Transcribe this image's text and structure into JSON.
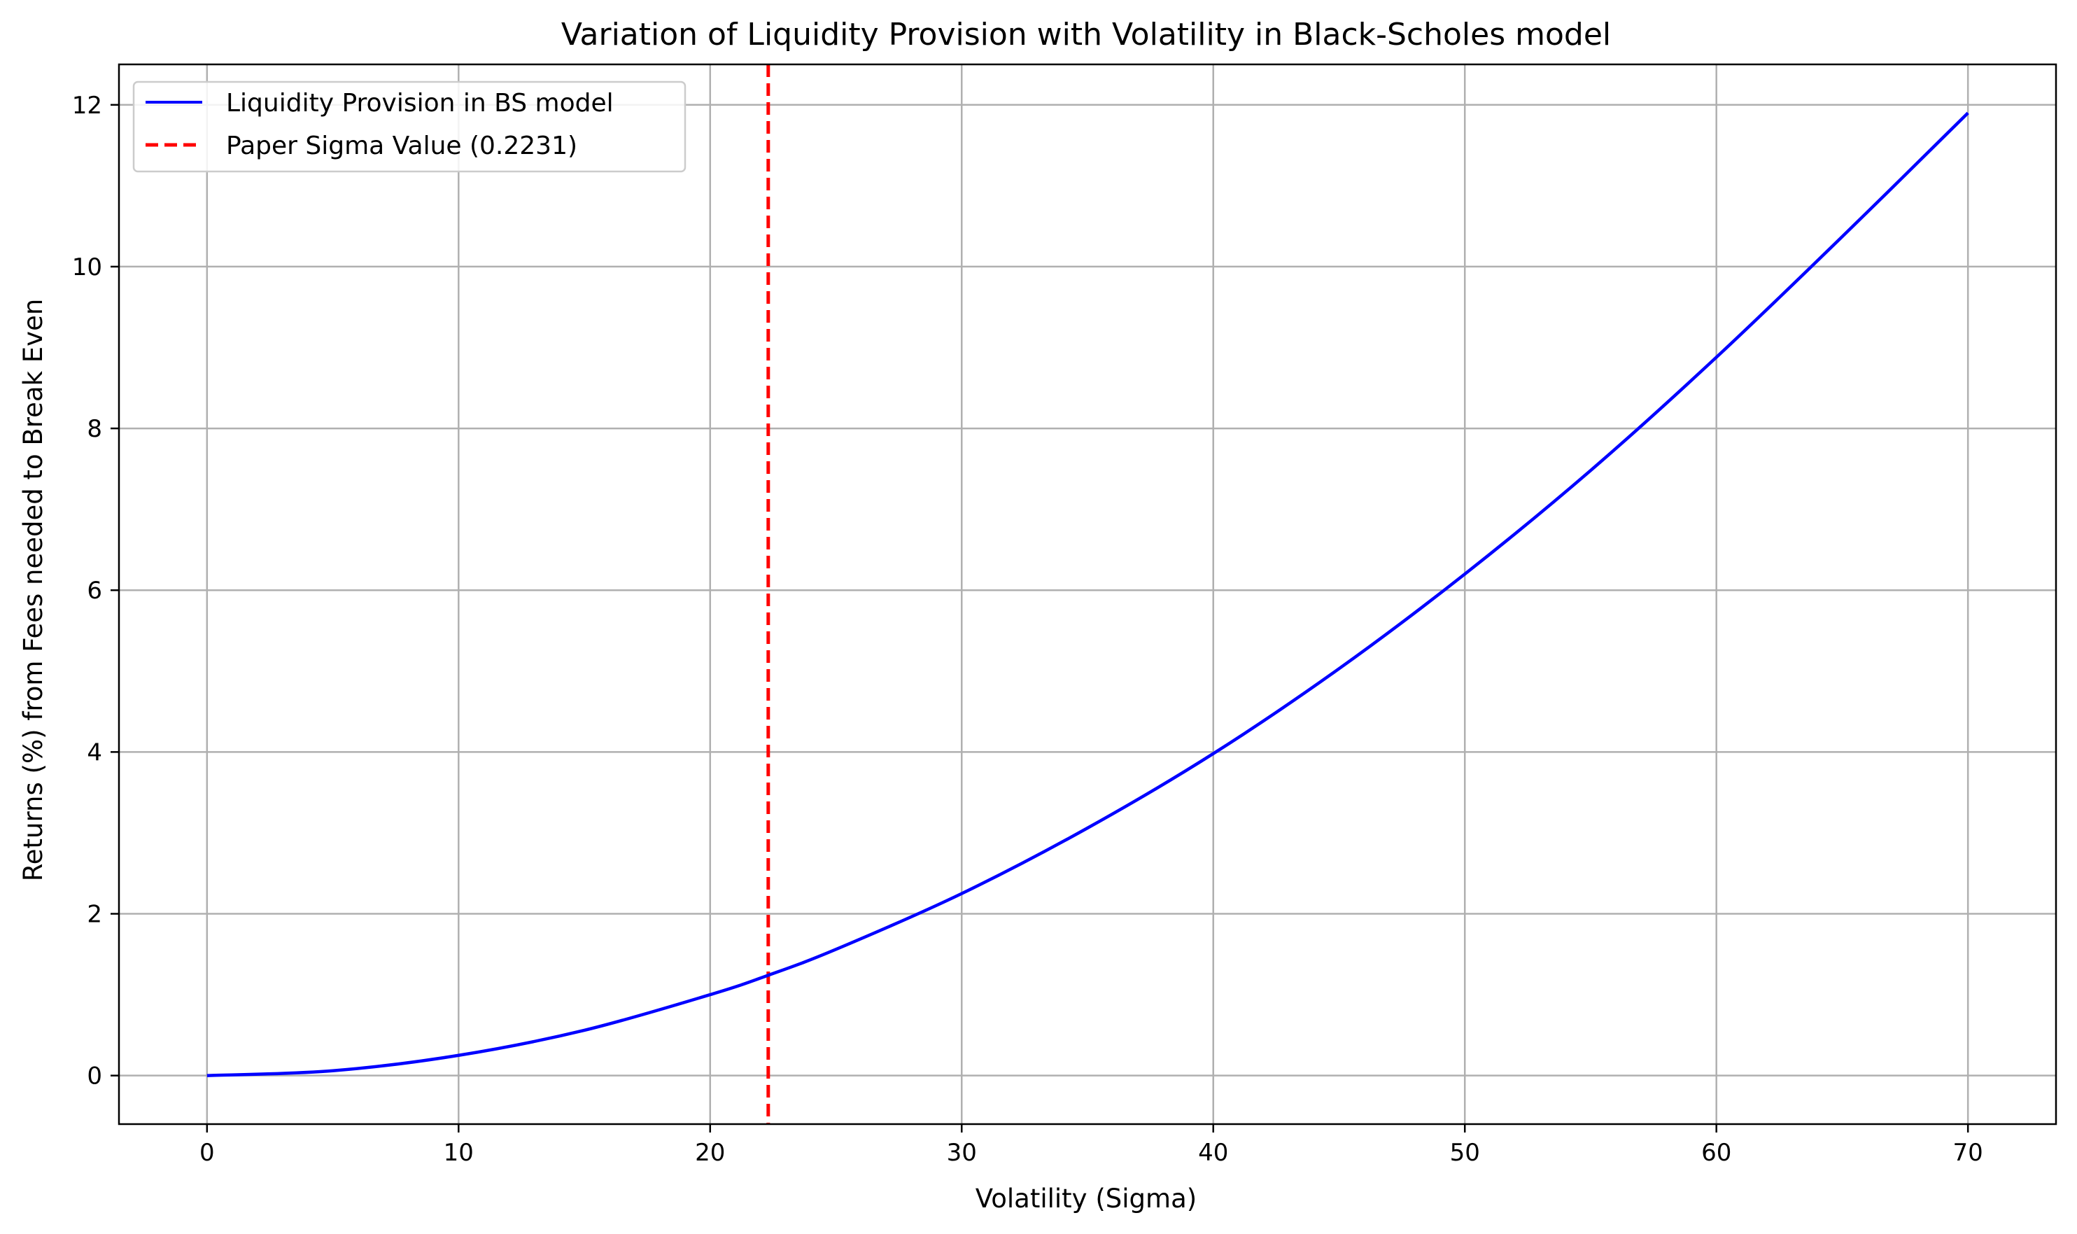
{
  "chart_data": {
    "type": "line",
    "title": "Variation of Liquidity Provision with Volatility in Black-Scholes model",
    "xlabel": "Volatility (Sigma)",
    "ylabel": "Returns (%) from Fees needed to Break Even",
    "xlim": [
      -3.5,
      73.5
    ],
    "ylim": [
      -0.6,
      12.5
    ],
    "xticks": [
      0,
      10,
      20,
      30,
      40,
      50,
      60,
      70
    ],
    "xtick_labels": [
      "0",
      "10",
      "20",
      "30",
      "40",
      "50",
      "60",
      "70"
    ],
    "yticks": [
      0,
      2,
      4,
      6,
      8,
      10,
      12
    ],
    "ytick_labels": [
      "0",
      "2",
      "4",
      "6",
      "8",
      "10",
      "12"
    ],
    "grid": true,
    "legend_position": "top-left",
    "series": [
      {
        "name": "Liquidity Provision in BS model",
        "color": "#0000ff",
        "style": "solid",
        "x": [
          0,
          5,
          10,
          15,
          20,
          22.31,
          25,
          30,
          35,
          40,
          45,
          50,
          55,
          60,
          65,
          70
        ],
        "y": [
          0,
          0.06,
          0.25,
          0.56,
          1.0,
          1.24,
          1.56,
          2.25,
          3.06,
          3.98,
          5.03,
          6.2,
          7.48,
          8.88,
          10.37,
          11.9
        ]
      }
    ],
    "reference_lines": [
      {
        "name": "Paper Sigma Value (0.2231)",
        "orientation": "vertical",
        "x": 22.31,
        "color": "#ff0000",
        "style": "dashed"
      }
    ]
  }
}
